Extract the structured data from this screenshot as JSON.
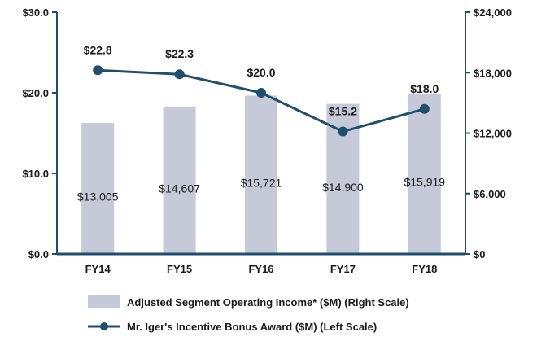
{
  "chart_data": {
    "type": "bar+line",
    "categories": [
      "FY14",
      "FY15",
      "FY16",
      "FY17",
      "FY18"
    ],
    "series": [
      {
        "name": "Adjusted Segment Operating Income* ($M) (Right Scale)",
        "type": "bar",
        "axis": "right",
        "values": [
          13005,
          14607,
          15721,
          14900,
          15919
        ],
        "labels": [
          "$13,005",
          "$14,607",
          "$15,721",
          "$14,900",
          "$15,919"
        ],
        "color": "#c5c9d8"
      },
      {
        "name": "Mr. Iger's Incentive Bonus Award ($M) (Left Scale)",
        "type": "line",
        "axis": "left",
        "values": [
          22.8,
          22.3,
          20.0,
          15.2,
          18.0
        ],
        "labels": [
          "$22.8",
          "$22.3",
          "$20.0",
          "$15.2",
          "$18.0"
        ],
        "color": "#1f4e6e"
      }
    ],
    "left_axis": {
      "ylim": [
        0,
        30
      ],
      "ticks": [
        0,
        10,
        20,
        30
      ],
      "tick_labels": [
        "$0.0",
        "$10.0",
        "$20.0",
        "$30.0"
      ]
    },
    "right_axis": {
      "ylim": [
        0,
        24000
      ],
      "ticks": [
        0,
        6000,
        12000,
        18000,
        24000
      ],
      "tick_labels": [
        "$0",
        "$6,000",
        "$12,000",
        "$18,000",
        "$24,000"
      ]
    },
    "grid": false,
    "legend_position": "bottom",
    "axis_color": "#1f4e6e"
  }
}
